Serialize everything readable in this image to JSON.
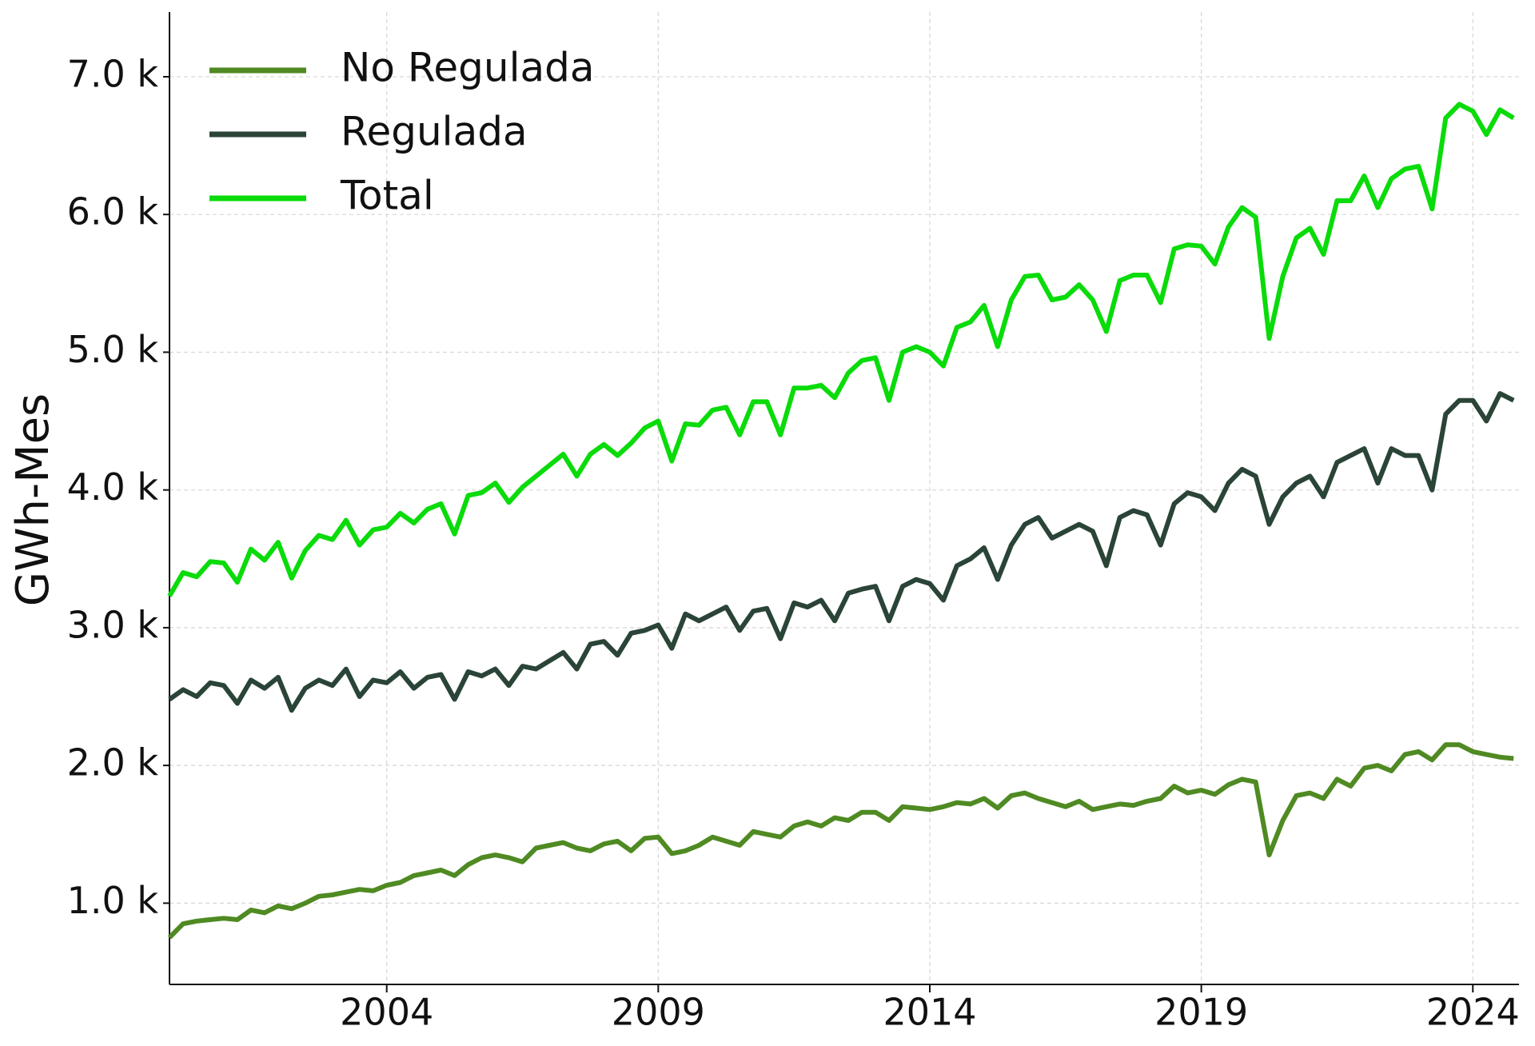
{
  "chart_data": {
    "type": "line",
    "y_label": "GWh-Mes",
    "x": [
      2000,
      2000.25,
      2000.5,
      2000.75,
      2001,
      2001.25,
      2001.5,
      2001.75,
      2002,
      2002.25,
      2002.5,
      2002.75,
      2003,
      2003.25,
      2003.5,
      2003.75,
      2004,
      2004.25,
      2004.5,
      2004.75,
      2005,
      2005.25,
      2005.5,
      2005.75,
      2006,
      2006.25,
      2006.5,
      2006.75,
      2007,
      2007.25,
      2007.5,
      2007.75,
      2008,
      2008.25,
      2008.5,
      2008.75,
      2009,
      2009.25,
      2009.5,
      2009.75,
      2010,
      2010.25,
      2010.5,
      2010.75,
      2011,
      2011.25,
      2011.5,
      2011.75,
      2012,
      2012.25,
      2012.5,
      2012.75,
      2013,
      2013.25,
      2013.5,
      2013.75,
      2014,
      2014.25,
      2014.5,
      2014.75,
      2015,
      2015.25,
      2015.5,
      2015.75,
      2016,
      2016.25,
      2016.5,
      2016.75,
      2017,
      2017.25,
      2017.5,
      2017.75,
      2018,
      2018.25,
      2018.5,
      2018.75,
      2019,
      2019.25,
      2019.5,
      2019.75,
      2020,
      2020.25,
      2020.5,
      2020.75,
      2021,
      2021.25,
      2021.5,
      2021.75,
      2022,
      2022.25,
      2022.5,
      2022.75,
      2023,
      2023.25,
      2023.5,
      2023.75,
      2024,
      2024.25,
      2024.5,
      2024.75
    ],
    "series": [
      {
        "name": "No Regulada",
        "color": "#4f8a22",
        "values": [
          750,
          850,
          870,
          880,
          890,
          880,
          950,
          930,
          980,
          960,
          1000,
          1050,
          1060,
          1080,
          1100,
          1090,
          1130,
          1150,
          1200,
          1220,
          1240,
          1200,
          1280,
          1330,
          1350,
          1330,
          1300,
          1400,
          1420,
          1440,
          1400,
          1380,
          1430,
          1450,
          1380,
          1470,
          1480,
          1360,
          1380,
          1420,
          1480,
          1450,
          1420,
          1520,
          1500,
          1480,
          1560,
          1590,
          1560,
          1620,
          1600,
          1660,
          1660,
          1600,
          1700,
          1690,
          1680,
          1700,
          1730,
          1720,
          1760,
          1690,
          1780,
          1800,
          1760,
          1730,
          1700,
          1740,
          1680,
          1700,
          1720,
          1710,
          1740,
          1760,
          1850,
          1800,
          1820,
          1790,
          1860,
          1900,
          1880,
          1350,
          1600,
          1780,
          1800,
          1760,
          1900,
          1850,
          1980,
          2000,
          1960,
          2080,
          2100,
          2040,
          2150,
          2150,
          2100,
          2080,
          2060,
          2050
        ]
      },
      {
        "name": "Regulada",
        "color": "#2a4437",
        "values": [
          2480,
          2550,
          2500,
          2600,
          2580,
          2450,
          2620,
          2560,
          2640,
          2400,
          2560,
          2620,
          2580,
          2700,
          2500,
          2620,
          2600,
          2680,
          2560,
          2640,
          2660,
          2480,
          2680,
          2650,
          2700,
          2580,
          2720,
          2700,
          2760,
          2820,
          2700,
          2880,
          2900,
          2800,
          2960,
          2980,
          3020,
          2850,
          3100,
          3050,
          3100,
          3150,
          2980,
          3120,
          3140,
          2920,
          3180,
          3150,
          3200,
          3050,
          3250,
          3280,
          3300,
          3050,
          3300,
          3350,
          3320,
          3200,
          3450,
          3500,
          3580,
          3350,
          3600,
          3750,
          3800,
          3650,
          3700,
          3750,
          3700,
          3450,
          3800,
          3850,
          3820,
          3600,
          3900,
          3980,
          3950,
          3850,
          4050,
          4150,
          4100,
          3750,
          3950,
          4050,
          4100,
          3950,
          4200,
          4250,
          4300,
          4050,
          4300,
          4250,
          4250,
          4000,
          4550,
          4650,
          4650,
          4500,
          4700,
          4650
        ]
      },
      {
        "name": "Total",
        "color": "#0adb0a",
        "values": [
          3230,
          3400,
          3370,
          3480,
          3470,
          3330,
          3570,
          3490,
          3620,
          3360,
          3560,
          3670,
          3640,
          3780,
          3600,
          3710,
          3730,
          3830,
          3760,
          3860,
          3900,
          3680,
          3960,
          3980,
          4050,
          3910,
          4020,
          4100,
          4180,
          4260,
          4100,
          4260,
          4330,
          4250,
          4340,
          4450,
          4500,
          4210,
          4480,
          4470,
          4580,
          4600,
          4400,
          4640,
          4640,
          4400,
          4740,
          4740,
          4760,
          4670,
          4850,
          4940,
          4960,
          4650,
          5000,
          5040,
          5000,
          4900,
          5180,
          5220,
          5340,
          5040,
          5380,
          5550,
          5560,
          5380,
          5400,
          5490,
          5380,
          5150,
          5520,
          5560,
          5560,
          5360,
          5750,
          5780,
          5770,
          5640,
          5910,
          6050,
          5980,
          5100,
          5550,
          5830,
          5900,
          5710,
          6100,
          6100,
          6280,
          6050,
          6260,
          6330,
          6350,
          6040,
          6700,
          6800,
          6750,
          6580,
          6760,
          6700
        ]
      }
    ],
    "xlim": [
      2000,
      2024.85
    ],
    "xticks": [
      2004,
      2009,
      2014,
      2019,
      2024
    ],
    "ylim": [
      410,
      7470
    ],
    "yticks": [
      {
        "value": 1000,
        "label": "1.0 k"
      },
      {
        "value": 2000,
        "label": "2.0 k"
      },
      {
        "value": 3000,
        "label": "3.0 k"
      },
      {
        "value": 4000,
        "label": "4.0 k"
      },
      {
        "value": 5000,
        "label": "5.0 k"
      },
      {
        "value": 6000,
        "label": "6.0 k"
      },
      {
        "value": 7000,
        "label": "7.0 k"
      }
    ],
    "grid": true,
    "legend": "upper-left"
  }
}
